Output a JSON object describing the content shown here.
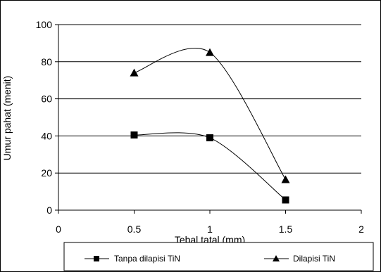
{
  "chart_data": {
    "type": "line",
    "xlabel": "Tebal tatal (mm)",
    "ylabel": "Umur pahat (menit)",
    "xlim": [
      0,
      2
    ],
    "ylim": [
      0,
      100
    ],
    "x_ticks": [
      "0",
      "0.5",
      "1",
      "1.5",
      "2"
    ],
    "y_ticks": [
      "0",
      "20",
      "40",
      "60",
      "80",
      "100"
    ],
    "grid": "horizontal",
    "legend_position": "bottom",
    "series": [
      {
        "name": "Tanpa dilapisi TiN",
        "marker": "square",
        "x": [
          0.5,
          1.0,
          1.5
        ],
        "y": [
          40.5,
          39,
          5.5
        ]
      },
      {
        "name": "Dilapisi TiN",
        "marker": "triangle",
        "x": [
          0.5,
          1.0,
          1.5
        ],
        "y": [
          74,
          85,
          16.5
        ]
      }
    ]
  }
}
